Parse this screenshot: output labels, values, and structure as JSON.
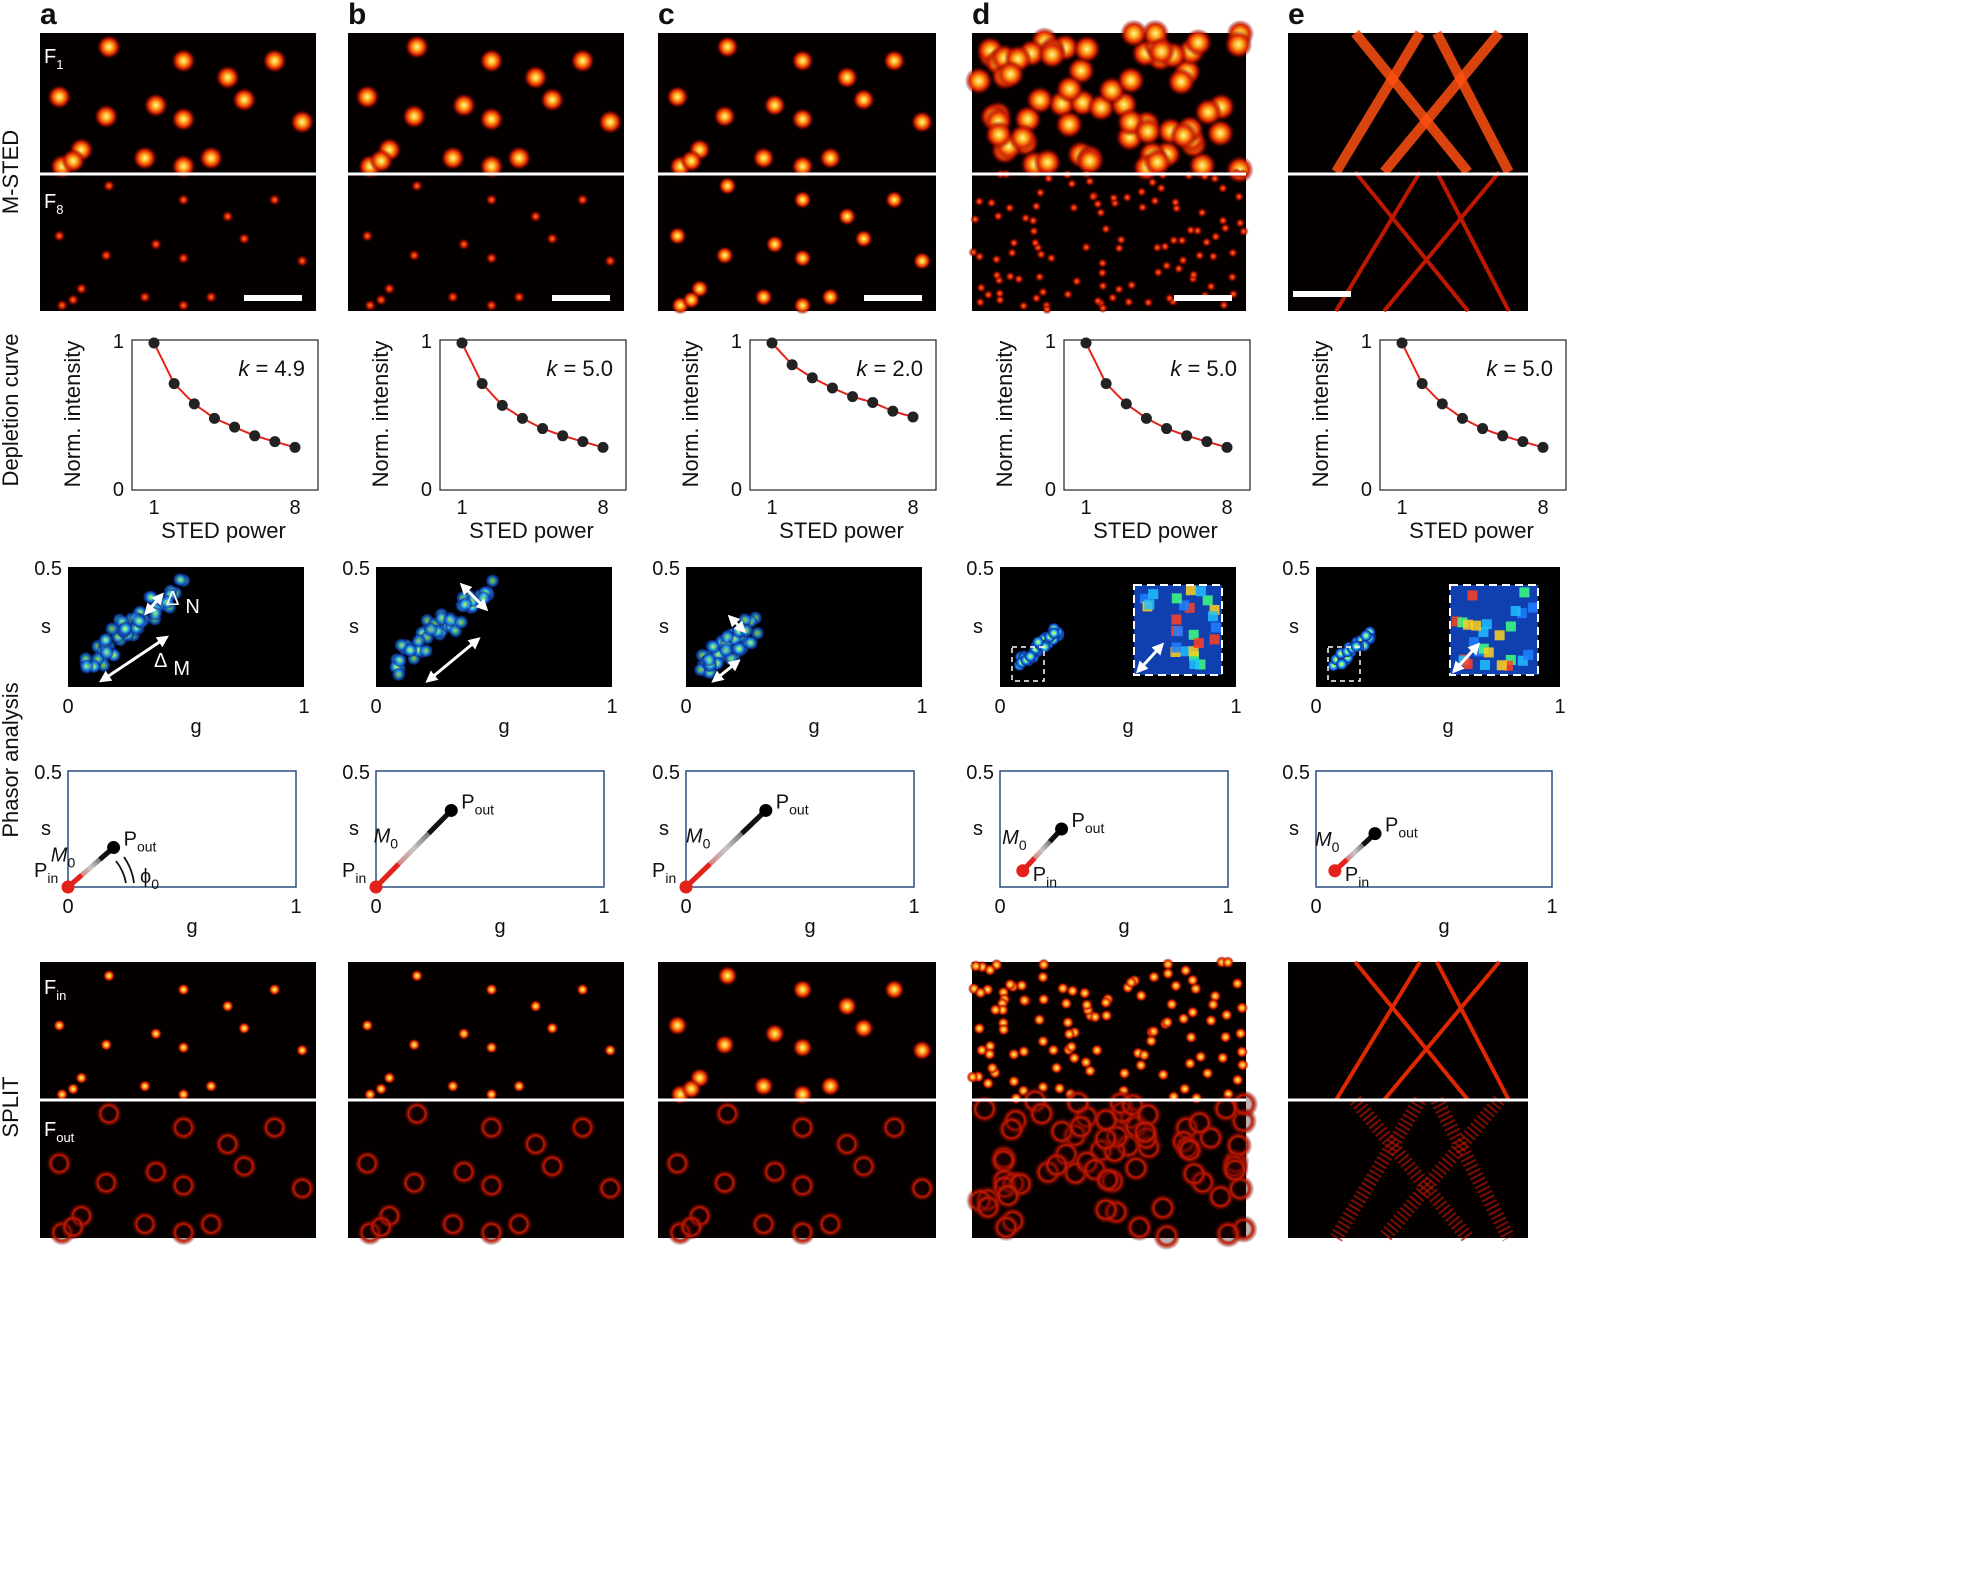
{
  "panels": [
    {
      "letter": "a",
      "k": "4.9",
      "scalebar": true,
      "scalebar_pos": "right",
      "phasor": {
        "pin_g": 0.0,
        "pin_s": 0.0,
        "pout_g": 0.2,
        "pout_s": 0.17,
        "phi_label": true
      },
      "inset": false
    },
    {
      "letter": "b",
      "k": "5.0",
      "scalebar": true,
      "scalebar_pos": "right",
      "phasor": {
        "pin_g": 0.0,
        "pin_s": 0.0,
        "pout_g": 0.33,
        "pout_s": 0.33,
        "phi_label": false
      },
      "inset": false
    },
    {
      "letter": "c",
      "k": "2.0",
      "scalebar": true,
      "scalebar_pos": "right",
      "phasor": {
        "pin_g": 0.0,
        "pin_s": 0.0,
        "pout_g": 0.35,
        "pout_s": 0.33,
        "phi_label": false
      },
      "inset": false
    },
    {
      "letter": "d",
      "k": "5.0",
      "scalebar": true,
      "scalebar_pos": "right",
      "phasor": {
        "pin_g": 0.1,
        "pin_s": 0.07,
        "pout_g": 0.27,
        "pout_s": 0.25,
        "phi_label": false
      },
      "inset": true
    },
    {
      "letter": "e",
      "k": "5.0",
      "scalebar": true,
      "scalebar_pos": "left",
      "phasor": {
        "pin_g": 0.08,
        "pin_s": 0.07,
        "pout_g": 0.25,
        "pout_s": 0.23,
        "phi_label": false
      },
      "inset": true
    }
  ],
  "row_labels": {
    "msted": "M-STED",
    "depletion": "Depletion curve",
    "phasor": "Phasor analysis",
    "split": "SPLIT"
  },
  "labels": {
    "f1": "F",
    "f1_sub": "1",
    "f8": "F",
    "f8_sub": "8",
    "fin": "F",
    "fin_sub": "in",
    "fout": "F",
    "fout_sub": "out",
    "ylabel_curve": "Norm. intensity",
    "xlabel_curve": "STED power",
    "k_prefix": "k",
    "k_eq": " = ",
    "s": "s",
    "g": "g",
    "pin": "P",
    "pin_sub": "in",
    "pout": "P",
    "pout_sub": "out",
    "m0": "M",
    "m0_sub": "0",
    "phi0": "ϕ",
    "phi0_sub": "0",
    "delta": "Δ",
    "n": "N",
    "m": "M"
  },
  "axis_ticks": {
    "curve_y": [
      "0",
      "1"
    ],
    "curve_x": [
      "1",
      "8"
    ],
    "phasor_s": "0.5",
    "phasor_g": [
      "0",
      "1"
    ]
  },
  "chart_data": {
    "type": "line",
    "title": "Depletion curve",
    "xlabel": "STED power",
    "ylabel": "Norm. intensity",
    "x": [
      1,
      2,
      3,
      4,
      5,
      6,
      7,
      8
    ],
    "series": [
      {
        "name": "a (k=4.9)",
        "values": [
          1.0,
          0.72,
          0.58,
          0.48,
          0.42,
          0.36,
          0.32,
          0.28
        ]
      },
      {
        "name": "b (k=5.0)",
        "values": [
          1.0,
          0.72,
          0.57,
          0.48,
          0.41,
          0.36,
          0.32,
          0.28
        ]
      },
      {
        "name": "c (k=2.0)",
        "values": [
          1.0,
          0.85,
          0.76,
          0.69,
          0.63,
          0.59,
          0.53,
          0.49
        ]
      },
      {
        "name": "d (k=5.0)",
        "values": [
          1.0,
          0.72,
          0.58,
          0.48,
          0.41,
          0.36,
          0.32,
          0.28
        ]
      },
      {
        "name": "e (k=5.0)",
        "values": [
          1.0,
          0.72,
          0.58,
          0.48,
          0.41,
          0.36,
          0.32,
          0.28
        ]
      }
    ],
    "xlim": [
      1,
      8
    ],
    "ylim": [
      0,
      1
    ]
  },
  "colors": {
    "curve_fit": "#e3231b",
    "curve_point": "#222222",
    "box_phasor": "#2a4d80",
    "pin": "#e3231b",
    "pout": "#000000",
    "micro_bg": "#050000"
  }
}
